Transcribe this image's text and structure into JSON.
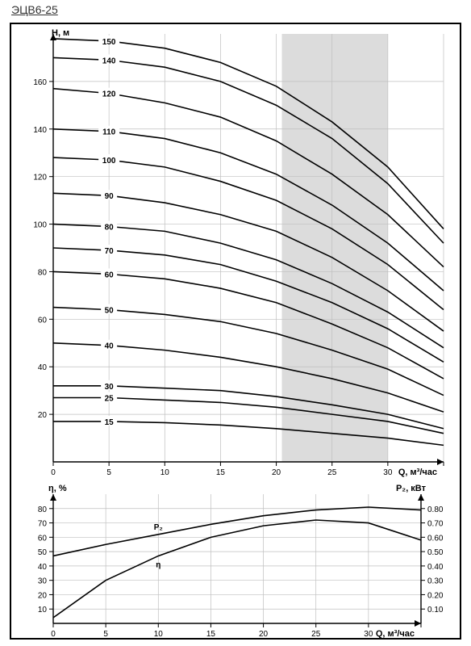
{
  "title": "ЭЦВ6-25",
  "frame": {
    "border_color": "#000000",
    "background": "#ffffff"
  },
  "colors": {
    "axis": "#000000",
    "grid": "#bfbfbf",
    "curve": "#000000",
    "shade": "#dcdcdc",
    "text": "#000000",
    "label_bg": "#ffffff"
  },
  "fonts": {
    "axis_label_size": 11,
    "tick_size": 10,
    "curve_label_size": 10,
    "curve_label_weight": "bold"
  },
  "main_chart": {
    "type": "line",
    "xlabel": "Q, м³/час",
    "ylabel": "Н, м",
    "xlim": [
      0,
      35
    ],
    "ylim": [
      0,
      180
    ],
    "xtick_step": 5,
    "yticks": [
      20,
      40,
      60,
      80,
      100,
      120,
      140,
      160
    ],
    "shaded_x": [
      20.5,
      30
    ],
    "line_width": 1.6,
    "x_values": [
      0,
      5,
      10,
      15,
      20,
      25,
      30,
      35
    ],
    "curves": [
      {
        "label": "15",
        "y": [
          17,
          17,
          16.5,
          15.5,
          14,
          12,
          10,
          7
        ]
      },
      {
        "label": "25",
        "y": [
          27,
          27,
          26,
          25,
          23,
          20,
          17,
          12
        ]
      },
      {
        "label": "30",
        "y": [
          32,
          32,
          31,
          30,
          27.5,
          24,
          20,
          14
        ]
      },
      {
        "label": "40",
        "y": [
          50,
          49,
          47,
          44,
          40,
          35,
          29,
          21
        ]
      },
      {
        "label": "50",
        "y": [
          65,
          64,
          62,
          59,
          54,
          47,
          39,
          28
        ]
      },
      {
        "label": "60",
        "y": [
          80,
          79,
          77,
          73,
          67,
          58,
          48,
          35
        ]
      },
      {
        "label": "70",
        "y": [
          90,
          89,
          87,
          83,
          76,
          67,
          56,
          42
        ]
      },
      {
        "label": "80",
        "y": [
          100,
          99,
          97,
          92,
          85,
          75,
          63,
          48
        ]
      },
      {
        "label": "90",
        "y": [
          113,
          112,
          109,
          104,
          97,
          86,
          72,
          55
        ]
      },
      {
        "label": "100",
        "y": [
          128,
          127,
          124,
          118,
          110,
          98,
          83,
          64
        ]
      },
      {
        "label": "110",
        "y": [
          140,
          139,
          136,
          130,
          121,
          108,
          92,
          72
        ]
      },
      {
        "label": "120",
        "y": [
          157,
          155,
          151,
          145,
          135,
          121,
          104,
          82
        ]
      },
      {
        "label": "140",
        "y": [
          170,
          169,
          166,
          160,
          150,
          136,
          117,
          92
        ]
      },
      {
        "label": "150",
        "y": [
          178,
          177,
          174,
          168,
          158,
          143,
          124,
          98
        ]
      }
    ]
  },
  "bottom_chart": {
    "type": "line",
    "xlabel": "Q, м³/час",
    "left_ylabel": "η, %",
    "right_ylabel": "P₂, кВт",
    "xlim": [
      0,
      35
    ],
    "left_ylim": [
      0,
      90
    ],
    "right_ylim": [
      0,
      0.9
    ],
    "xtick_step": 5,
    "left_yticks": [
      10,
      20,
      30,
      40,
      50,
      60,
      70,
      80
    ],
    "right_yticks": [
      0.1,
      0.2,
      0.3,
      0.4,
      0.5,
      0.6,
      0.7,
      0.8
    ],
    "x_values": [
      0,
      5,
      10,
      15,
      20,
      25,
      30,
      35
    ],
    "line_width": 1.6,
    "curves": [
      {
        "name": "η",
        "axis": "left",
        "y": [
          4,
          30,
          47,
          60,
          68,
          72,
          70,
          58
        ],
        "label_at_x": 10
      },
      {
        "name": "P₂",
        "axis": "right",
        "y": [
          0.47,
          0.55,
          0.62,
          0.69,
          0.75,
          0.79,
          0.81,
          0.79
        ],
        "label_at_x": 14
      }
    ]
  }
}
